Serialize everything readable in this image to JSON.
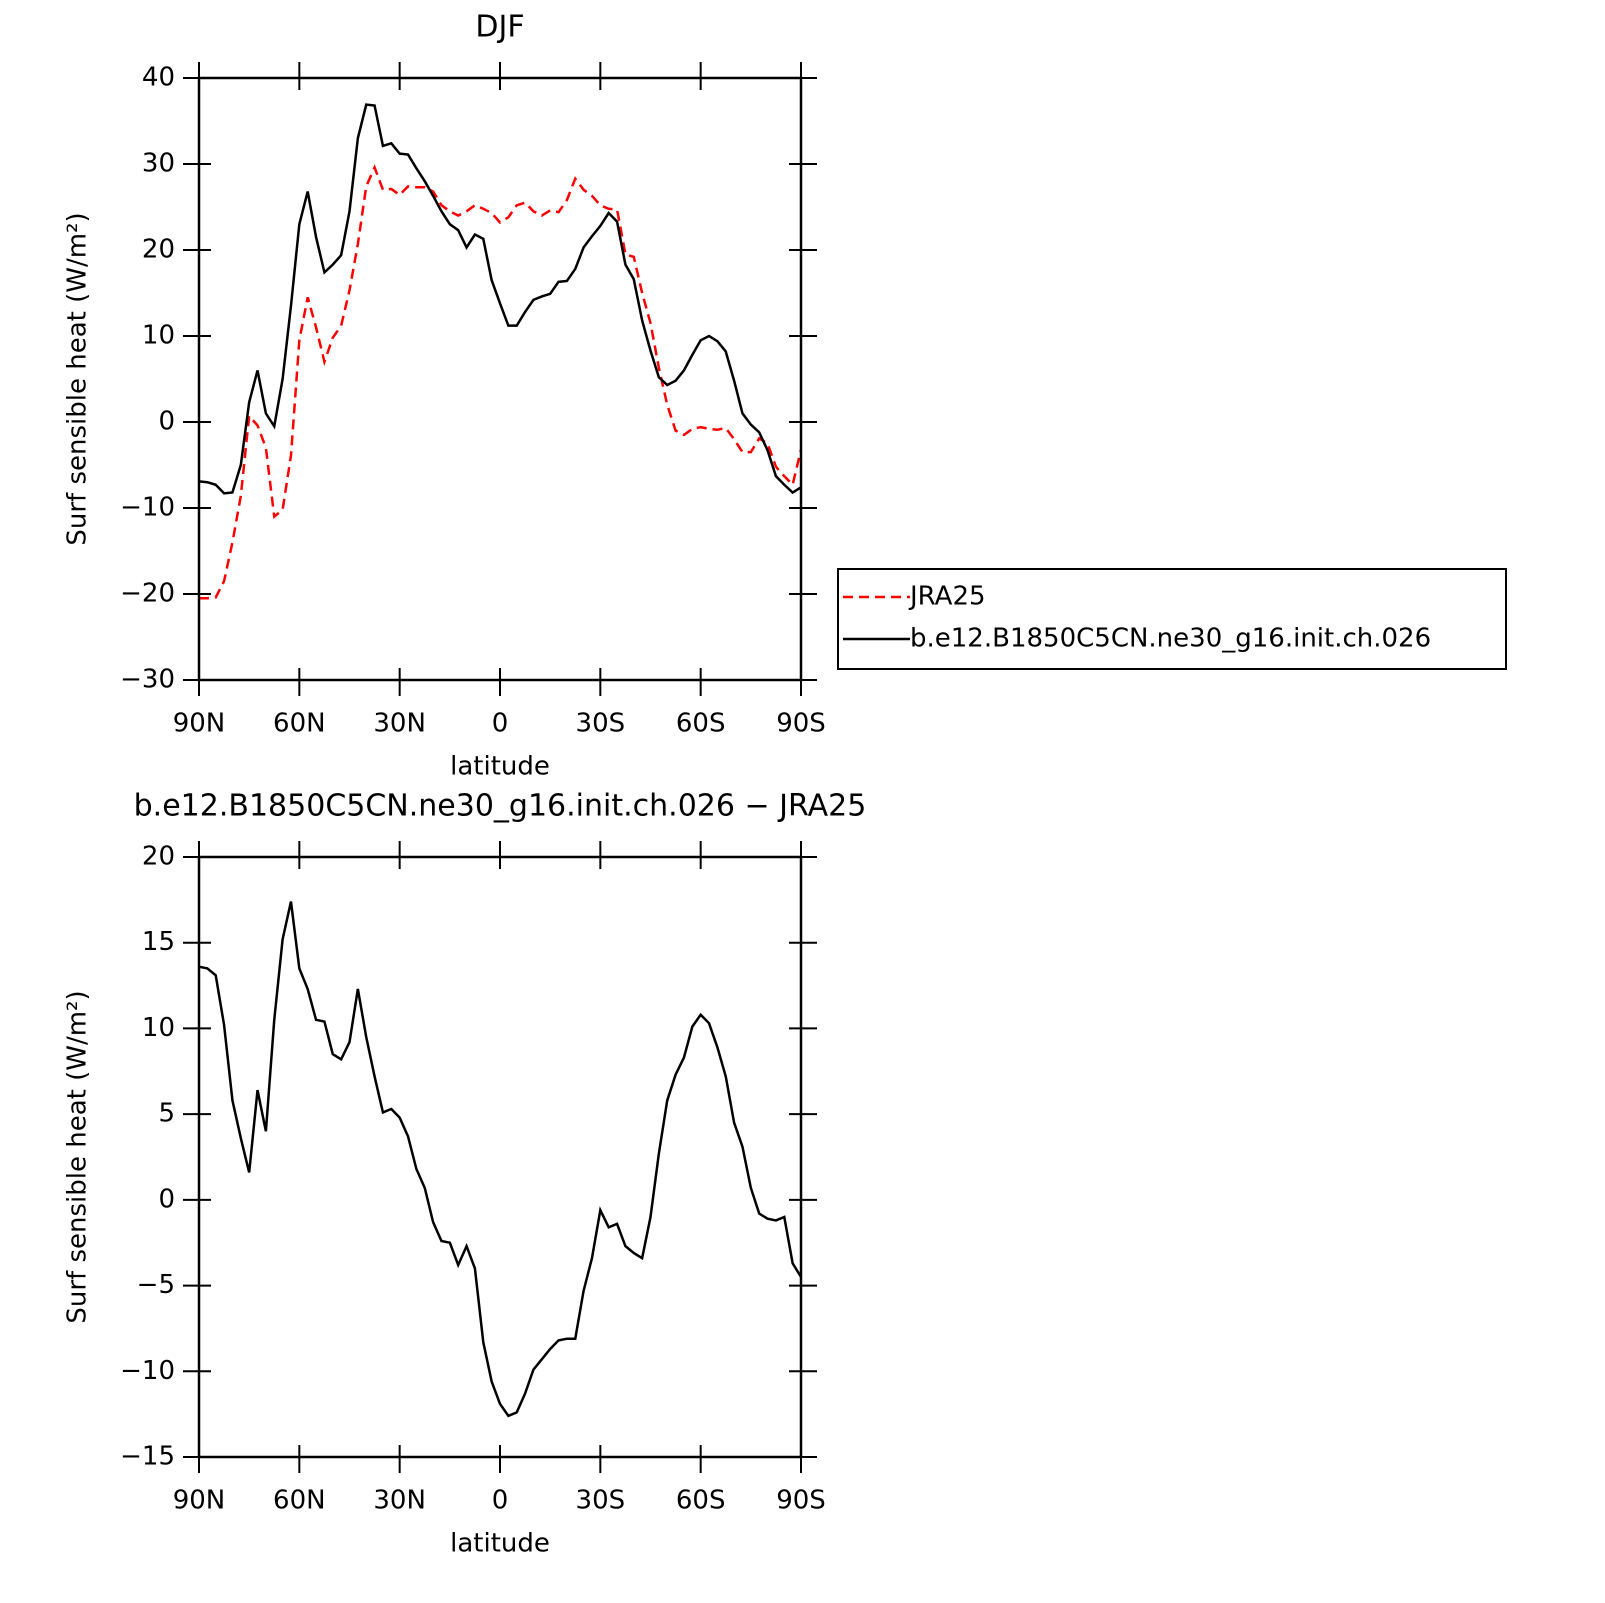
{
  "chart_data": [
    {
      "type": "line",
      "title": "DJF",
      "xlabel": "latitude",
      "ylabel": "Surf sensible heat (W/m²)",
      "x": [
        90,
        87.5,
        85,
        82.5,
        80,
        77.5,
        75,
        72.5,
        70,
        67.5,
        65,
        62.5,
        60,
        57.5,
        55,
        52.5,
        50,
        47.5,
        45,
        42.5,
        40,
        37.5,
        35,
        32.5,
        30,
        27.5,
        25,
        22.5,
        20,
        17.5,
        15,
        12.5,
        10,
        7.5,
        5,
        2.5,
        0,
        -2.5,
        -5,
        -7.5,
        -10,
        -12.5,
        -15,
        -17.5,
        -20,
        -22.5,
        -25,
        -27.5,
        -30,
        -32.5,
        -35,
        -37.5,
        -40,
        -42.5,
        -45,
        -47.5,
        -50,
        -52.5,
        -55,
        -57.5,
        -60,
        -62.5,
        -65,
        -67.5,
        -70,
        -72.5,
        -75,
        -77.5,
        -80,
        -82.5,
        -85,
        -87.5,
        -90
      ],
      "series": [
        {
          "name": "JRA25",
          "color": "#ff0000",
          "style": "dashed",
          "values": [
            -20.5,
            -20.5,
            -20.4,
            -18.5,
            -14.0,
            -8.6,
            0.7,
            -0.4,
            -3.0,
            -11.0,
            -10.2,
            -3.9,
            9.5,
            14.5,
            11.0,
            7.0,
            9.8,
            11.2,
            15.3,
            20.7,
            27.4,
            29.6,
            27.0,
            27.1,
            26.4,
            27.4,
            27.3,
            27.3,
            26.8,
            25.2,
            24.5,
            24.0,
            24.5,
            25.2,
            24.8,
            24.3,
            23.2,
            23.8,
            25.2,
            25.5,
            24.5,
            24.0,
            24.6,
            24.4,
            25.8,
            28.3,
            27.0,
            26.3,
            25.2,
            24.8,
            24.7,
            19.5,
            19.2,
            15.0,
            11.5,
            6.3,
            2.0,
            -1.0,
            -1.5,
            -0.8,
            -0.6,
            -0.8,
            -0.9,
            -0.7,
            -2.0,
            -3.5,
            -3.5,
            -1.9,
            -2.5,
            -5.2,
            -6.3,
            -7.3,
            -3.2
          ]
        },
        {
          "name": "b.e12.B1850C5CN.ne30_g16.init.ch.026",
          "color": "#000000",
          "style": "solid",
          "values": [
            -6.9,
            -7.0,
            -7.3,
            -8.3,
            -8.2,
            -5.0,
            2.3,
            6.0,
            1.0,
            -0.5,
            5.0,
            13.5,
            23.0,
            26.8,
            21.5,
            17.4,
            18.3,
            19.4,
            24.5,
            33.0,
            36.9,
            36.8,
            32.1,
            32.4,
            31.2,
            31.1,
            29.5,
            28.0,
            26.3,
            24.5,
            23.0,
            22.3,
            20.3,
            21.8,
            21.3,
            16.5,
            13.8,
            11.2,
            11.2,
            12.8,
            14.2,
            14.6,
            14.9,
            16.3,
            16.4,
            17.8,
            20.3,
            21.6,
            22.8,
            24.3,
            23.3,
            18.3,
            16.6,
            11.8,
            8.3,
            5.2,
            4.3,
            4.8,
            6.0,
            7.8,
            9.5,
            10.0,
            9.4,
            8.2,
            4.8,
            1.0,
            -0.3,
            -1.2,
            -3.3,
            -6.3,
            -7.3,
            -8.2,
            -7.6
          ]
        }
      ],
      "xlim": [
        90,
        -90
      ],
      "xticks": [
        {
          "value": 90,
          "label": "90N"
        },
        {
          "value": 60,
          "label": "60N"
        },
        {
          "value": 30,
          "label": "30N"
        },
        0,
        {
          "value": -30,
          "label": "30S"
        },
        {
          "value": -60,
          "label": "60S"
        },
        {
          "value": -90,
          "label": "90S"
        }
      ],
      "ylim": [
        -30,
        40
      ],
      "yticks": [
        {
          "value": -30,
          "label": "−30"
        },
        {
          "value": -20,
          "label": "−20"
        },
        {
          "value": -10,
          "label": "−10"
        },
        0,
        10,
        20,
        30,
        40
      ],
      "legend": "outside right"
    },
    {
      "type": "line",
      "title": "b.e12.B1850C5CN.ne30_g16.init.ch.026 − JRA25",
      "xlabel": "latitude",
      "ylabel": "Surf sensible heat (W/m²)",
      "x": [
        90,
        87.5,
        85,
        82.5,
        80,
        77.5,
        75,
        72.5,
        70,
        67.5,
        65,
        62.5,
        60,
        57.5,
        55,
        52.5,
        50,
        47.5,
        45,
        42.5,
        40,
        37.5,
        35,
        32.5,
        30,
        27.5,
        25,
        22.5,
        20,
        17.5,
        15,
        12.5,
        10,
        7.5,
        5,
        2.5,
        0,
        -2.5,
        -5,
        -7.5,
        -10,
        -12.5,
        -15,
        -17.5,
        -20,
        -22.5,
        -25,
        -27.5,
        -30,
        -32.5,
        -35,
        -37.5,
        -40,
        -42.5,
        -45,
        -47.5,
        -50,
        -52.5,
        -55,
        -57.5,
        -60,
        -62.5,
        -65,
        -67.5,
        -70,
        -72.5,
        -75,
        -77.5,
        -80,
        -82.5,
        -85,
        -87.5,
        -90
      ],
      "series": [
        {
          "color": "#000000",
          "style": "solid",
          "values": [
            13.6,
            13.5,
            13.1,
            10.2,
            5.8,
            3.6,
            1.6,
            6.4,
            4.0,
            10.5,
            15.2,
            17.4,
            13.5,
            12.3,
            10.5,
            10.4,
            8.5,
            8.2,
            9.2,
            12.3,
            9.5,
            7.2,
            5.1,
            5.3,
            4.8,
            3.7,
            1.8,
            0.7,
            -1.3,
            -2.4,
            -2.5,
            -3.8,
            -2.7,
            -4.0,
            -8.3,
            -10.6,
            -11.9,
            -12.6,
            -12.4,
            -11.3,
            -9.9,
            -9.3,
            -8.7,
            -8.2,
            -8.1,
            -8.1,
            -5.3,
            -3.4,
            -0.6,
            -1.6,
            -1.4,
            -2.7,
            -3.1,
            -3.4,
            -1.0,
            2.7,
            5.8,
            7.3,
            8.3,
            10.1,
            10.8,
            10.3,
            8.9,
            7.2,
            4.5,
            3.1,
            0.7,
            -0.8,
            -1.1,
            -1.2,
            -1.0,
            -3.7,
            -4.5
          ]
        }
      ],
      "xlim": [
        90,
        -90
      ],
      "xticks": [
        {
          "value": 90,
          "label": "90N"
        },
        {
          "value": 60,
          "label": "60N"
        },
        {
          "value": 30,
          "label": "30N"
        },
        0,
        {
          "value": -30,
          "label": "30S"
        },
        {
          "value": -60,
          "label": "60S"
        },
        {
          "value": -90,
          "label": "90S"
        }
      ],
      "ylim": [
        -15,
        20
      ],
      "yticks": [
        {
          "value": -15,
          "label": "−15"
        },
        {
          "value": -10,
          "label": "−10"
        },
        {
          "value": -5,
          "label": "−5"
        },
        0,
        5,
        10,
        15,
        20
      ]
    }
  ]
}
